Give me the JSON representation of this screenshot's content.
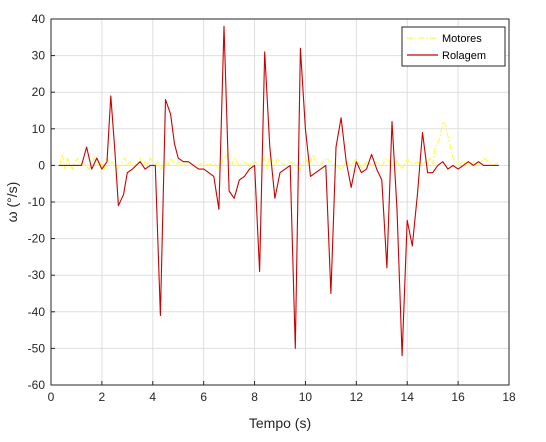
{
  "chart_data": {
    "type": "line",
    "title": "",
    "xlabel": "Tempo (s)",
    "ylabel": "ω (°/s)",
    "xlim": [
      0,
      18
    ],
    "ylim": [
      -60,
      40
    ],
    "xticks": [
      0,
      2,
      4,
      6,
      8,
      10,
      12,
      14,
      16,
      18
    ],
    "yticks": [
      -60,
      -50,
      -40,
      -30,
      -20,
      -10,
      0,
      10,
      20,
      30,
      40
    ],
    "grid": true,
    "legend": "top-right",
    "series": [
      {
        "name": "Motores",
        "color": "#ffff33",
        "style": "dash-dot",
        "x": [
          0.35,
          0.45,
          0.55,
          0.65,
          0.75,
          0.85,
          0.95,
          1.05,
          1.15,
          1.25,
          1.35,
          1.5,
          1.7,
          1.9,
          2.0,
          2.1,
          2.2,
          2.3,
          2.4,
          2.5,
          2.6,
          2.7,
          2.8,
          2.9,
          3.0,
          3.1,
          3.2,
          3.3,
          3.4,
          3.5,
          3.6,
          3.7,
          3.8,
          3.9,
          4.0,
          4.1,
          4.2,
          4.3,
          4.4,
          4.5,
          4.6,
          4.7,
          4.8,
          4.9,
          5.0,
          5.2,
          5.4,
          5.6,
          5.8,
          6.0,
          6.2,
          6.4,
          6.6,
          6.8,
          6.9,
          7.0,
          7.1,
          7.2,
          7.4,
          7.6,
          7.8,
          8.0,
          8.2,
          8.4,
          8.5,
          8.6,
          8.7,
          8.8,
          8.9,
          9.0,
          9.2,
          9.4,
          9.6,
          9.8,
          10.0,
          10.1,
          10.2,
          10.3,
          10.4,
          10.6,
          10.8,
          11.0,
          11.2,
          11.4,
          11.6,
          11.8,
          12.0,
          12.2,
          12.4,
          12.6,
          12.8,
          13.0,
          13.2,
          13.4,
          13.6,
          13.8,
          14.0,
          14.2,
          14.4,
          14.6,
          14.7,
          14.8,
          14.9,
          15.0,
          15.1,
          15.2,
          15.3,
          15.4,
          15.5,
          15.6,
          15.7,
          15.8,
          16.0,
          16.2,
          16.4,
          16.6,
          16.8,
          17.0,
          17.2,
          17.4,
          17.6
        ],
        "y": [
          0,
          3,
          -1,
          2,
          0,
          -1,
          1,
          2,
          0,
          1,
          0,
          -1,
          2,
          0,
          1,
          -1,
          2,
          0,
          1,
          0,
          -1,
          0,
          1,
          2,
          0,
          1,
          -1,
          0,
          1,
          2,
          0,
          1,
          0,
          2,
          1,
          0,
          1,
          -1,
          0,
          1,
          0,
          2,
          1,
          0,
          1,
          0,
          1,
          0,
          0,
          1,
          0,
          1,
          -1,
          2,
          3,
          1,
          0,
          2,
          0,
          1,
          0,
          1,
          0,
          2,
          -1,
          3,
          1,
          0,
          2,
          1,
          0,
          1,
          0,
          -1,
          2,
          0,
          1,
          3,
          1,
          0,
          2,
          1,
          0,
          -1,
          1,
          0,
          2,
          -1,
          1,
          0,
          1,
          0,
          2,
          0,
          1,
          -1,
          2,
          0,
          1,
          0,
          1,
          0,
          2,
          0,
          5,
          6,
          8,
          12,
          11,
          8,
          5,
          2,
          0,
          1,
          0,
          1,
          0,
          2,
          1,
          0,
          1
        ]
      },
      {
        "name": "Rolagem",
        "color": "#cc0000",
        "style": "solid",
        "x": [
          0.3,
          0.7,
          1.0,
          1.2,
          1.4,
          1.6,
          1.8,
          2.0,
          2.2,
          2.35,
          2.5,
          2.65,
          2.85,
          3.0,
          3.2,
          3.5,
          3.7,
          3.9,
          4.1,
          4.3,
          4.5,
          4.7,
          4.85,
          5.0,
          5.2,
          5.4,
          5.6,
          5.8,
          6.0,
          6.2,
          6.4,
          6.6,
          6.8,
          7.0,
          7.2,
          7.4,
          7.6,
          7.8,
          8.0,
          8.2,
          8.4,
          8.6,
          8.8,
          9.0,
          9.2,
          9.4,
          9.6,
          9.8,
          10.0,
          10.2,
          10.4,
          10.6,
          10.8,
          11.0,
          11.2,
          11.4,
          11.6,
          11.8,
          12.0,
          12.2,
          12.4,
          12.6,
          12.8,
          13.0,
          13.2,
          13.4,
          13.6,
          13.8,
          14.0,
          14.2,
          14.4,
          14.6,
          14.8,
          15.0,
          15.2,
          15.4,
          15.6,
          15.8,
          16.0,
          16.2,
          16.4,
          16.6,
          16.8,
          17.0,
          17.2,
          17.4,
          17.6
        ],
        "y": [
          0,
          0,
          0,
          0,
          5,
          -1,
          2,
          -1,
          1,
          19,
          5,
          -11,
          -8,
          -2,
          -1,
          1,
          -1,
          0,
          0,
          -41,
          18,
          14,
          6,
          2,
          1,
          1,
          0,
          -1,
          -1,
          -2,
          -3,
          -12,
          38,
          -7,
          -9,
          -4,
          -3,
          -1,
          0,
          -29,
          31,
          5,
          -9,
          -2,
          -1,
          0,
          -50,
          32,
          10,
          -3,
          -2,
          -1,
          0,
          -35,
          5,
          13,
          1,
          -6,
          1,
          -2,
          -1,
          3,
          -1,
          -4,
          -28,
          12,
          -12,
          -52,
          -15,
          -22,
          -8,
          9,
          -2,
          -2,
          0,
          1,
          -1,
          0,
          -1,
          0,
          1,
          0,
          1,
          0,
          0,
          0,
          0
        ]
      }
    ]
  }
}
